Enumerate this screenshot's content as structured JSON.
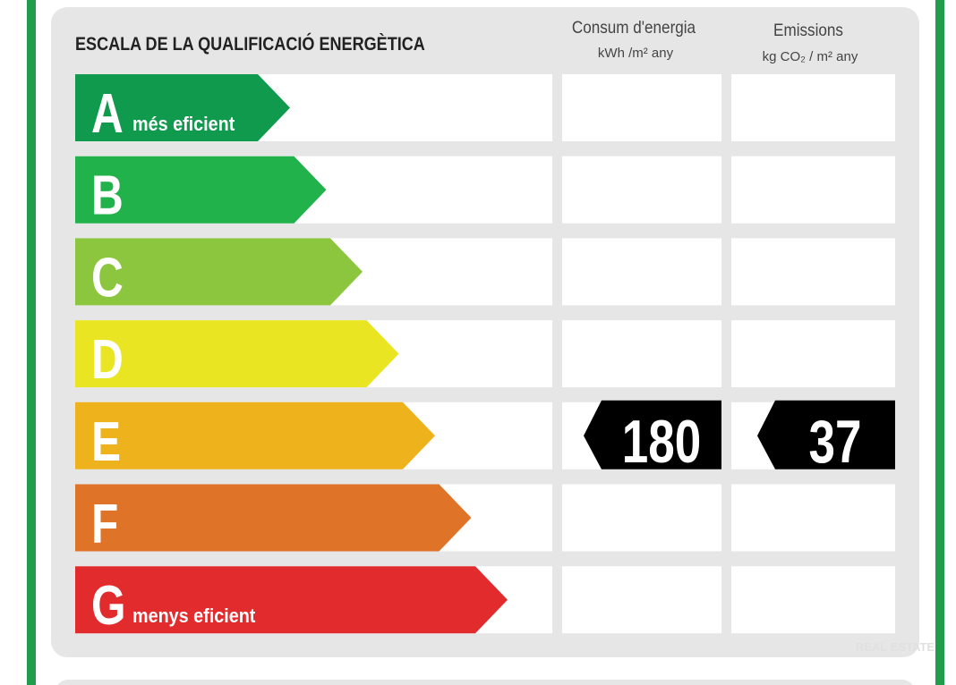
{
  "header": {
    "title": "ESCALA DE LA QUALIFICACIÓ ENERGÈTICA"
  },
  "columns": [
    {
      "title": "Consum d'energia",
      "unit": "kWh /m² any"
    },
    {
      "title": "Emissions",
      "unit": "kg CO₂ / m² any"
    }
  ],
  "rows": [
    {
      "letter": "A",
      "label": "més eficient",
      "color": "#0f9a4d"
    },
    {
      "letter": "B",
      "color": "#22b24b"
    },
    {
      "letter": "C",
      "color": "#8cc63f"
    },
    {
      "letter": "D",
      "color": "#e9e523"
    },
    {
      "letter": "E",
      "color": "#eeb21c",
      "consumption": 180,
      "emissions": 37
    },
    {
      "letter": "F",
      "color": "#df7429"
    },
    {
      "letter": "G",
      "label": "menys eficient",
      "color": "#e12b2c"
    }
  ],
  "watermark": "REAL ESTATE"
}
